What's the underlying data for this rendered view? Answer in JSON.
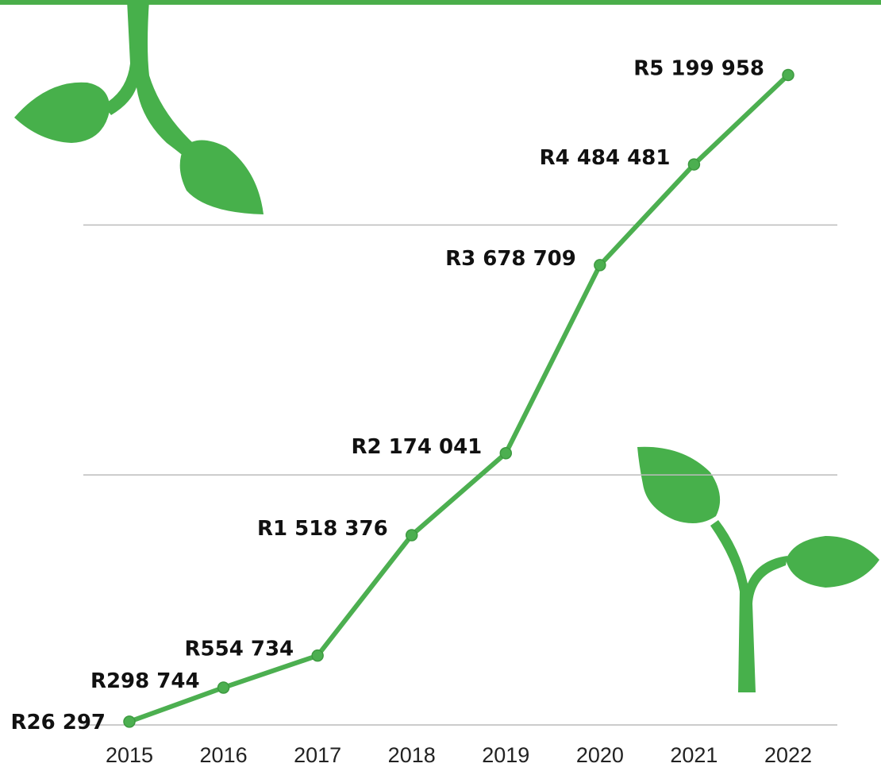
{
  "chart_data": {
    "type": "line",
    "categories": [
      "2015",
      "2016",
      "2017",
      "2018",
      "2019",
      "2020",
      "2021",
      "2022"
    ],
    "series": [
      {
        "color": "#4caf50",
        "values": [
          26297,
          298744,
          554734,
          1518376,
          2174041,
          3678709,
          4484481,
          5199958
        ],
        "value_labels": [
          "R26 297",
          "R298 744",
          "R554 734",
          "R1 518 376",
          "R2 174 041",
          "R3 678 709",
          "R4 484 481",
          "R5 199 958"
        ]
      }
    ],
    "ylim": [
      0,
      5800000
    ],
    "yticks": [
      0,
      2000000,
      4000000
    ],
    "grid": true
  }
}
